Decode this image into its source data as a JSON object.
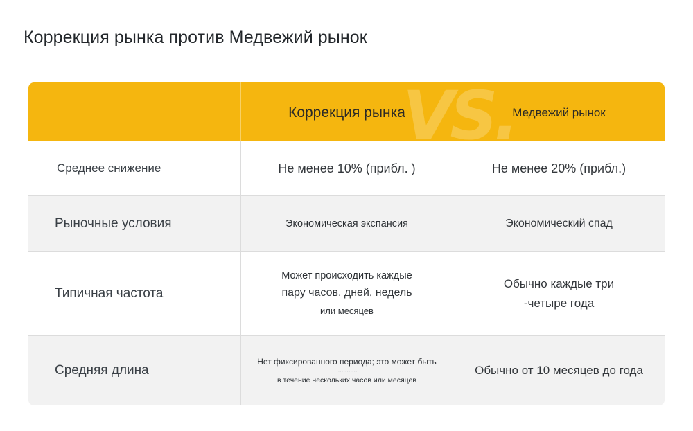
{
  "page": {
    "title": "Коррекция рынка против Медвежий рынок"
  },
  "table": {
    "vs_mark": "VS.",
    "headers": [
      "",
      "Коррекция рынка",
      "Медвежий рынок"
    ],
    "rows": [
      {
        "label": "Среднее снижение",
        "correction": [
          "Не менее 10% (прибл. )"
        ],
        "bear": [
          "Не менее 20% (прибл.)"
        ]
      },
      {
        "label": "Рыночные условия",
        "correction": [
          "Экономическая экспансия"
        ],
        "bear": [
          "Экономический спад"
        ]
      },
      {
        "label": "Типичная частота",
        "correction": [
          "Может происходить каждые",
          "пару часов, дней, недель",
          "или месяцев"
        ],
        "bear": [
          "Обычно каждые три",
          "-четыре года"
        ]
      },
      {
        "label": "Средняя длина",
        "correction": [
          "Нет фиксированного периода; это может быть",
          "в течение нескольких часов или месяцев"
        ],
        "bear": [
          "Обычно от 10 месяцев до года"
        ]
      }
    ]
  },
  "colors": {
    "header_accent": "#f5b60f",
    "row_gray": "#f2f2f2",
    "row_white": "#ffffff",
    "text": "#2f3337"
  }
}
